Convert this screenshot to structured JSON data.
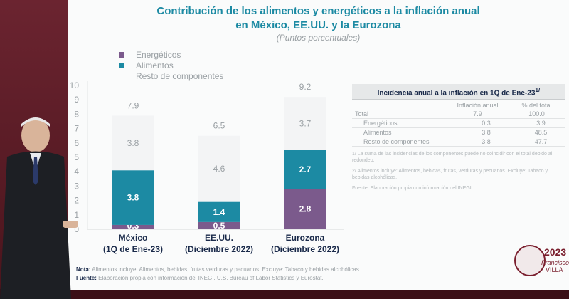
{
  "title_line1": "Contribución de los alimentos y energéticos a la inflación anual",
  "title_line2": "en México, EE.UU. y la Eurozona",
  "subtitle": "(Puntos porcentuales)",
  "legend": [
    {
      "label": "Energéticos",
      "color": "#7b5a8c"
    },
    {
      "label": "Alimentos",
      "color": "#1c8aa3"
    },
    {
      "label": "Resto de componentes",
      "color": "#f3f4f5"
    }
  ],
  "chart_data": {
    "type": "bar",
    "stacked": true,
    "categories": [
      [
        "México",
        "(1Q de Ene-23)"
      ],
      [
        "EE.UU.",
        "(Diciembre 2022)"
      ],
      [
        "Eurozona",
        "(Diciembre 2022)"
      ]
    ],
    "totals": [
      "7.9",
      "6.5",
      "9.2"
    ],
    "series": [
      {
        "name": "Energéticos",
        "color": "#7b5a8c",
        "values": [
          0.3,
          0.5,
          2.8
        ],
        "labels": [
          "0.3",
          "0.5",
          "2.8"
        ]
      },
      {
        "name": "Alimentos",
        "color": "#1c8aa3",
        "values": [
          3.8,
          1.4,
          2.7
        ],
        "labels": [
          "3.8",
          "1.4",
          "2.7"
        ]
      },
      {
        "name": "Resto de componentes",
        "color": "#f3f4f5",
        "values": [
          3.8,
          4.6,
          3.7
        ],
        "labels": [
          "3.8",
          "4.6",
          "3.7"
        ]
      }
    ],
    "ylim": [
      0,
      10
    ],
    "yticks": [
      "0",
      "1",
      "2",
      "3",
      "4",
      "5",
      "6",
      "7",
      "8",
      "9",
      "10"
    ]
  },
  "table": {
    "title": "Incidencia anual a la inflación en 1Q de Ene-23",
    "title_sup": "1/",
    "headers": [
      "",
      "Inflación anual",
      "% del total"
    ],
    "rows": [
      {
        "label": "Total",
        "c2": "7.9",
        "c3": "100.0",
        "indent": false
      },
      {
        "label": "Energéticos",
        "c2": "0.3",
        "c3": "3.9",
        "indent": true
      },
      {
        "label": "Alimentos",
        "c2": "3.8",
        "c3": "48.5",
        "indent": true
      },
      {
        "label": "Resto de componentes",
        "c2": "3.8",
        "c3": "47.7",
        "indent": true
      }
    ],
    "note1": "1/ La suma de las incidencias de los componentes puede no coincidir con el total debido al redondeo.",
    "note2": "2/ Alimentos incluye: Alimentos, bebidas, frutas, verduras y pecuarios. Excluye: Tabaco y bebidas alcohólicas.",
    "note3": "Fuente: Elaboración propia con información del INEGI."
  },
  "note_label": "Nota:",
  "note_text": "Alimentos incluye: Alimentos, bebidas, frutas verduras y pecuarios. Excluye: Tabaco y bebidas alcohólicas.",
  "source_label": "Fuente:",
  "source_text": "Elaboración propia con información del INEGI, U.S. Bureau of Labor Statistics y Eurostat.",
  "logo": {
    "year": "2023",
    "name": "Francisco",
    "surname": "VILLA"
  }
}
